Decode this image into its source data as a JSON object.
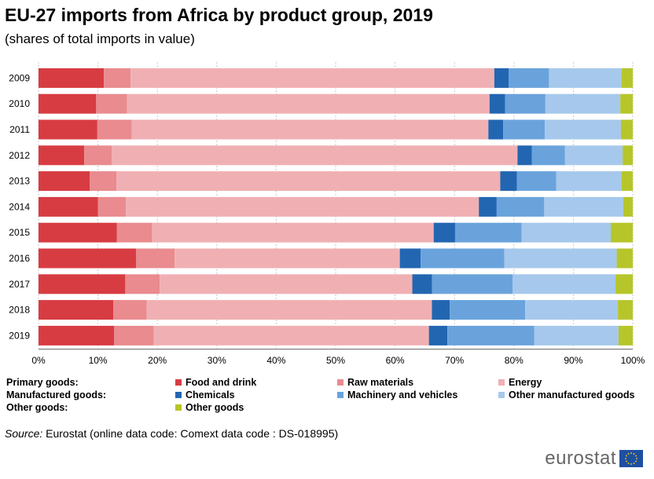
{
  "title": "EU-27 imports from Africa by product group, 2019",
  "subtitle": "(shares of total imports in value)",
  "source_label": "Source:",
  "source_text": "Eurostat (online data code: Comext data code : DS-018995)",
  "logo_text": "eurostat",
  "legend_groups": {
    "primary": "Primary goods:",
    "manufactured": "Manufactured goods:",
    "other": "Other goods:"
  },
  "legend_items": {
    "food": "Food and drink",
    "raw": "Raw materials",
    "energy": "Energy",
    "chemicals": "Chemicals",
    "machinery": "Machinery and vehicles",
    "other_manufactured": "Other manufactured goods",
    "other_goods": "Other goods"
  },
  "colors": {
    "food": "#d73c42",
    "raw": "#e98b8f",
    "energy": "#f0b0b3",
    "chemicals": "#2266b1",
    "machinery": "#6aa3dc",
    "other_manufactured": "#a6c8ec",
    "other_goods": "#b6c62a"
  },
  "chart_data": {
    "type": "bar",
    "orientation": "horizontal",
    "stacked": true,
    "categories": [
      "2009",
      "2010",
      "2011",
      "2012",
      "2013",
      "2014",
      "2015",
      "2016",
      "2017",
      "2018",
      "2019"
    ],
    "series": [
      {
        "name": "Food and drink",
        "key": "food",
        "values": [
          11.0,
          9.7,
          9.9,
          7.7,
          8.6,
          10.0,
          13.2,
          16.4,
          14.6,
          12.6,
          12.7
        ]
      },
      {
        "name": "Raw materials",
        "key": "raw",
        "values": [
          4.5,
          5.2,
          5.8,
          4.6,
          4.5,
          4.7,
          5.9,
          6.5,
          5.8,
          5.6,
          6.7
        ]
      },
      {
        "name": "Energy",
        "key": "energy",
        "values": [
          61.2,
          61.0,
          60.0,
          68.3,
          64.6,
          59.4,
          47.4,
          37.9,
          42.5,
          48.0,
          46.3
        ]
      },
      {
        "name": "Chemicals",
        "key": "chemicals",
        "values": [
          2.4,
          2.6,
          2.5,
          2.4,
          2.8,
          3.0,
          3.6,
          3.5,
          3.3,
          3.0,
          3.1
        ]
      },
      {
        "name": "Machinery and vehicles",
        "key": "machinery",
        "values": [
          6.8,
          6.8,
          7.0,
          5.6,
          6.6,
          8.0,
          11.2,
          14.1,
          13.6,
          12.7,
          14.6
        ]
      },
      {
        "name": "Other manufactured goods",
        "key": "other_manufactured",
        "values": [
          12.2,
          12.6,
          12.8,
          9.7,
          11.0,
          13.3,
          15.0,
          18.9,
          17.3,
          15.6,
          14.2
        ]
      },
      {
        "name": "Other goods",
        "key": "other_goods",
        "values": [
          1.9,
          2.1,
          2.0,
          1.7,
          1.9,
          1.6,
          3.7,
          2.7,
          2.9,
          2.5,
          2.4
        ]
      }
    ],
    "xlim": [
      0,
      100
    ],
    "ticks": [
      "0%",
      "10%",
      "20%",
      "30%",
      "40%",
      "50%",
      "60%",
      "70%",
      "80%",
      "90%",
      "100%"
    ],
    "gridlines": true
  }
}
